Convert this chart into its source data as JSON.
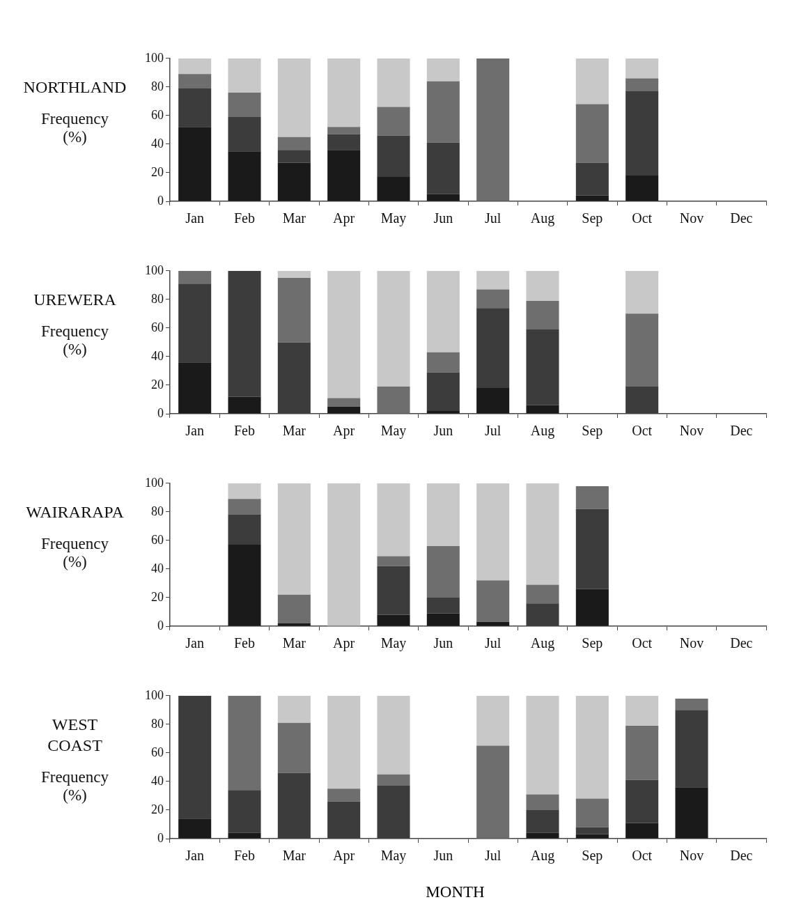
{
  "chart_data": [
    {
      "type": "bar",
      "stacked": true,
      "title": "NORTHLAND",
      "ylabel": "Frequency\n(%)",
      "categories": [
        "Jan",
        "Feb",
        "Mar",
        "Apr",
        "May",
        "Jun",
        "Jul",
        "Aug",
        "Sep",
        "Oct",
        "Nov",
        "Dec"
      ],
      "ylim": [
        0,
        100
      ],
      "yticks": [
        0,
        20,
        40,
        60,
        80,
        100
      ],
      "grid": false,
      "series": [
        {
          "color": "#1a1a1a",
          "values": [
            52,
            35,
            27,
            36,
            17,
            5,
            0,
            null,
            4,
            18,
            null,
            null
          ]
        },
        {
          "color": "#3c3c3c",
          "values": [
            27,
            24,
            9,
            11,
            29,
            36,
            0,
            null,
            23,
            59,
            null,
            null
          ]
        },
        {
          "color": "#6e6e6e",
          "values": [
            10,
            17,
            9,
            5,
            20,
            43,
            100,
            null,
            41,
            9,
            null,
            null
          ]
        },
        {
          "color": "#c8c8c8",
          "values": [
            11,
            24,
            55,
            48,
            34,
            16,
            0,
            null,
            32,
            14,
            null,
            null
          ]
        }
      ]
    },
    {
      "type": "bar",
      "stacked": true,
      "title": "UREWERA",
      "ylabel": "Frequency\n(%)",
      "categories": [
        "Jan",
        "Feb",
        "Mar",
        "Apr",
        "May",
        "Jun",
        "Jul",
        "Aug",
        "Sep",
        "Oct",
        "Nov",
        "Dec"
      ],
      "ylim": [
        0,
        100
      ],
      "yticks": [
        0,
        20,
        40,
        60,
        80,
        100
      ],
      "grid": false,
      "series": [
        {
          "color": "#1a1a1a",
          "values": [
            36,
            12,
            0,
            5,
            0,
            2,
            18,
            6,
            null,
            0,
            null,
            null
          ]
        },
        {
          "color": "#3c3c3c",
          "values": [
            55,
            88,
            50,
            0,
            0,
            27,
            56,
            53,
            null,
            19,
            null,
            null
          ]
        },
        {
          "color": "#6e6e6e",
          "values": [
            9,
            0,
            45,
            6,
            19,
            14,
            13,
            20,
            null,
            51,
            null,
            null
          ]
        },
        {
          "color": "#c8c8c8",
          "values": [
            0,
            0,
            5,
            89,
            81,
            57,
            13,
            21,
            null,
            30,
            null,
            null
          ]
        }
      ]
    },
    {
      "type": "bar",
      "stacked": true,
      "title": "WAIRARAPA",
      "ylabel": "Frequency\n(%)",
      "categories": [
        "Jan",
        "Feb",
        "Mar",
        "Apr",
        "May",
        "Jun",
        "Jul",
        "Aug",
        "Sep",
        "Oct",
        "Nov",
        "Dec"
      ],
      "ylim": [
        0,
        100
      ],
      "yticks": [
        0,
        20,
        40,
        60,
        80,
        100
      ],
      "grid": false,
      "series": [
        {
          "color": "#1a1a1a",
          "values": [
            null,
            57,
            2,
            0,
            8,
            9,
            3,
            0,
            26,
            null,
            null,
            null
          ]
        },
        {
          "color": "#3c3c3c",
          "values": [
            null,
            21,
            0,
            0,
            34,
            11,
            0,
            16,
            56,
            null,
            null,
            null
          ]
        },
        {
          "color": "#6e6e6e",
          "values": [
            null,
            11,
            20,
            0,
            7,
            36,
            29,
            13,
            16,
            null,
            null,
            null
          ]
        },
        {
          "color": "#c8c8c8",
          "values": [
            null,
            11,
            78,
            100,
            51,
            44,
            68,
            71,
            0,
            null,
            null,
            null
          ]
        }
      ]
    },
    {
      "type": "bar",
      "stacked": true,
      "title": "WEST\nCOAST",
      "ylabel": "Frequency\n(%)",
      "xlabel": "MONTH",
      "categories": [
        "Jan",
        "Feb",
        "Mar",
        "Apr",
        "May",
        "Jun",
        "Jul",
        "Aug",
        "Sep",
        "Oct",
        "Nov",
        "Dec"
      ],
      "ylim": [
        0,
        100
      ],
      "yticks": [
        0,
        20,
        40,
        60,
        80,
        100
      ],
      "grid": false,
      "series": [
        {
          "color": "#1a1a1a",
          "values": [
            14,
            4,
            0,
            0,
            0,
            null,
            0,
            4,
            3,
            11,
            36,
            null
          ]
        },
        {
          "color": "#3c3c3c",
          "values": [
            86,
            30,
            46,
            26,
            37,
            null,
            0,
            16,
            5,
            30,
            54,
            null
          ]
        },
        {
          "color": "#6e6e6e",
          "values": [
            0,
            66,
            35,
            9,
            8,
            null,
            65,
            11,
            20,
            38,
            8,
            null
          ]
        },
        {
          "color": "#c8c8c8",
          "values": [
            0,
            0,
            19,
            65,
            55,
            null,
            35,
            69,
            72,
            21,
            0,
            null
          ]
        }
      ]
    }
  ]
}
